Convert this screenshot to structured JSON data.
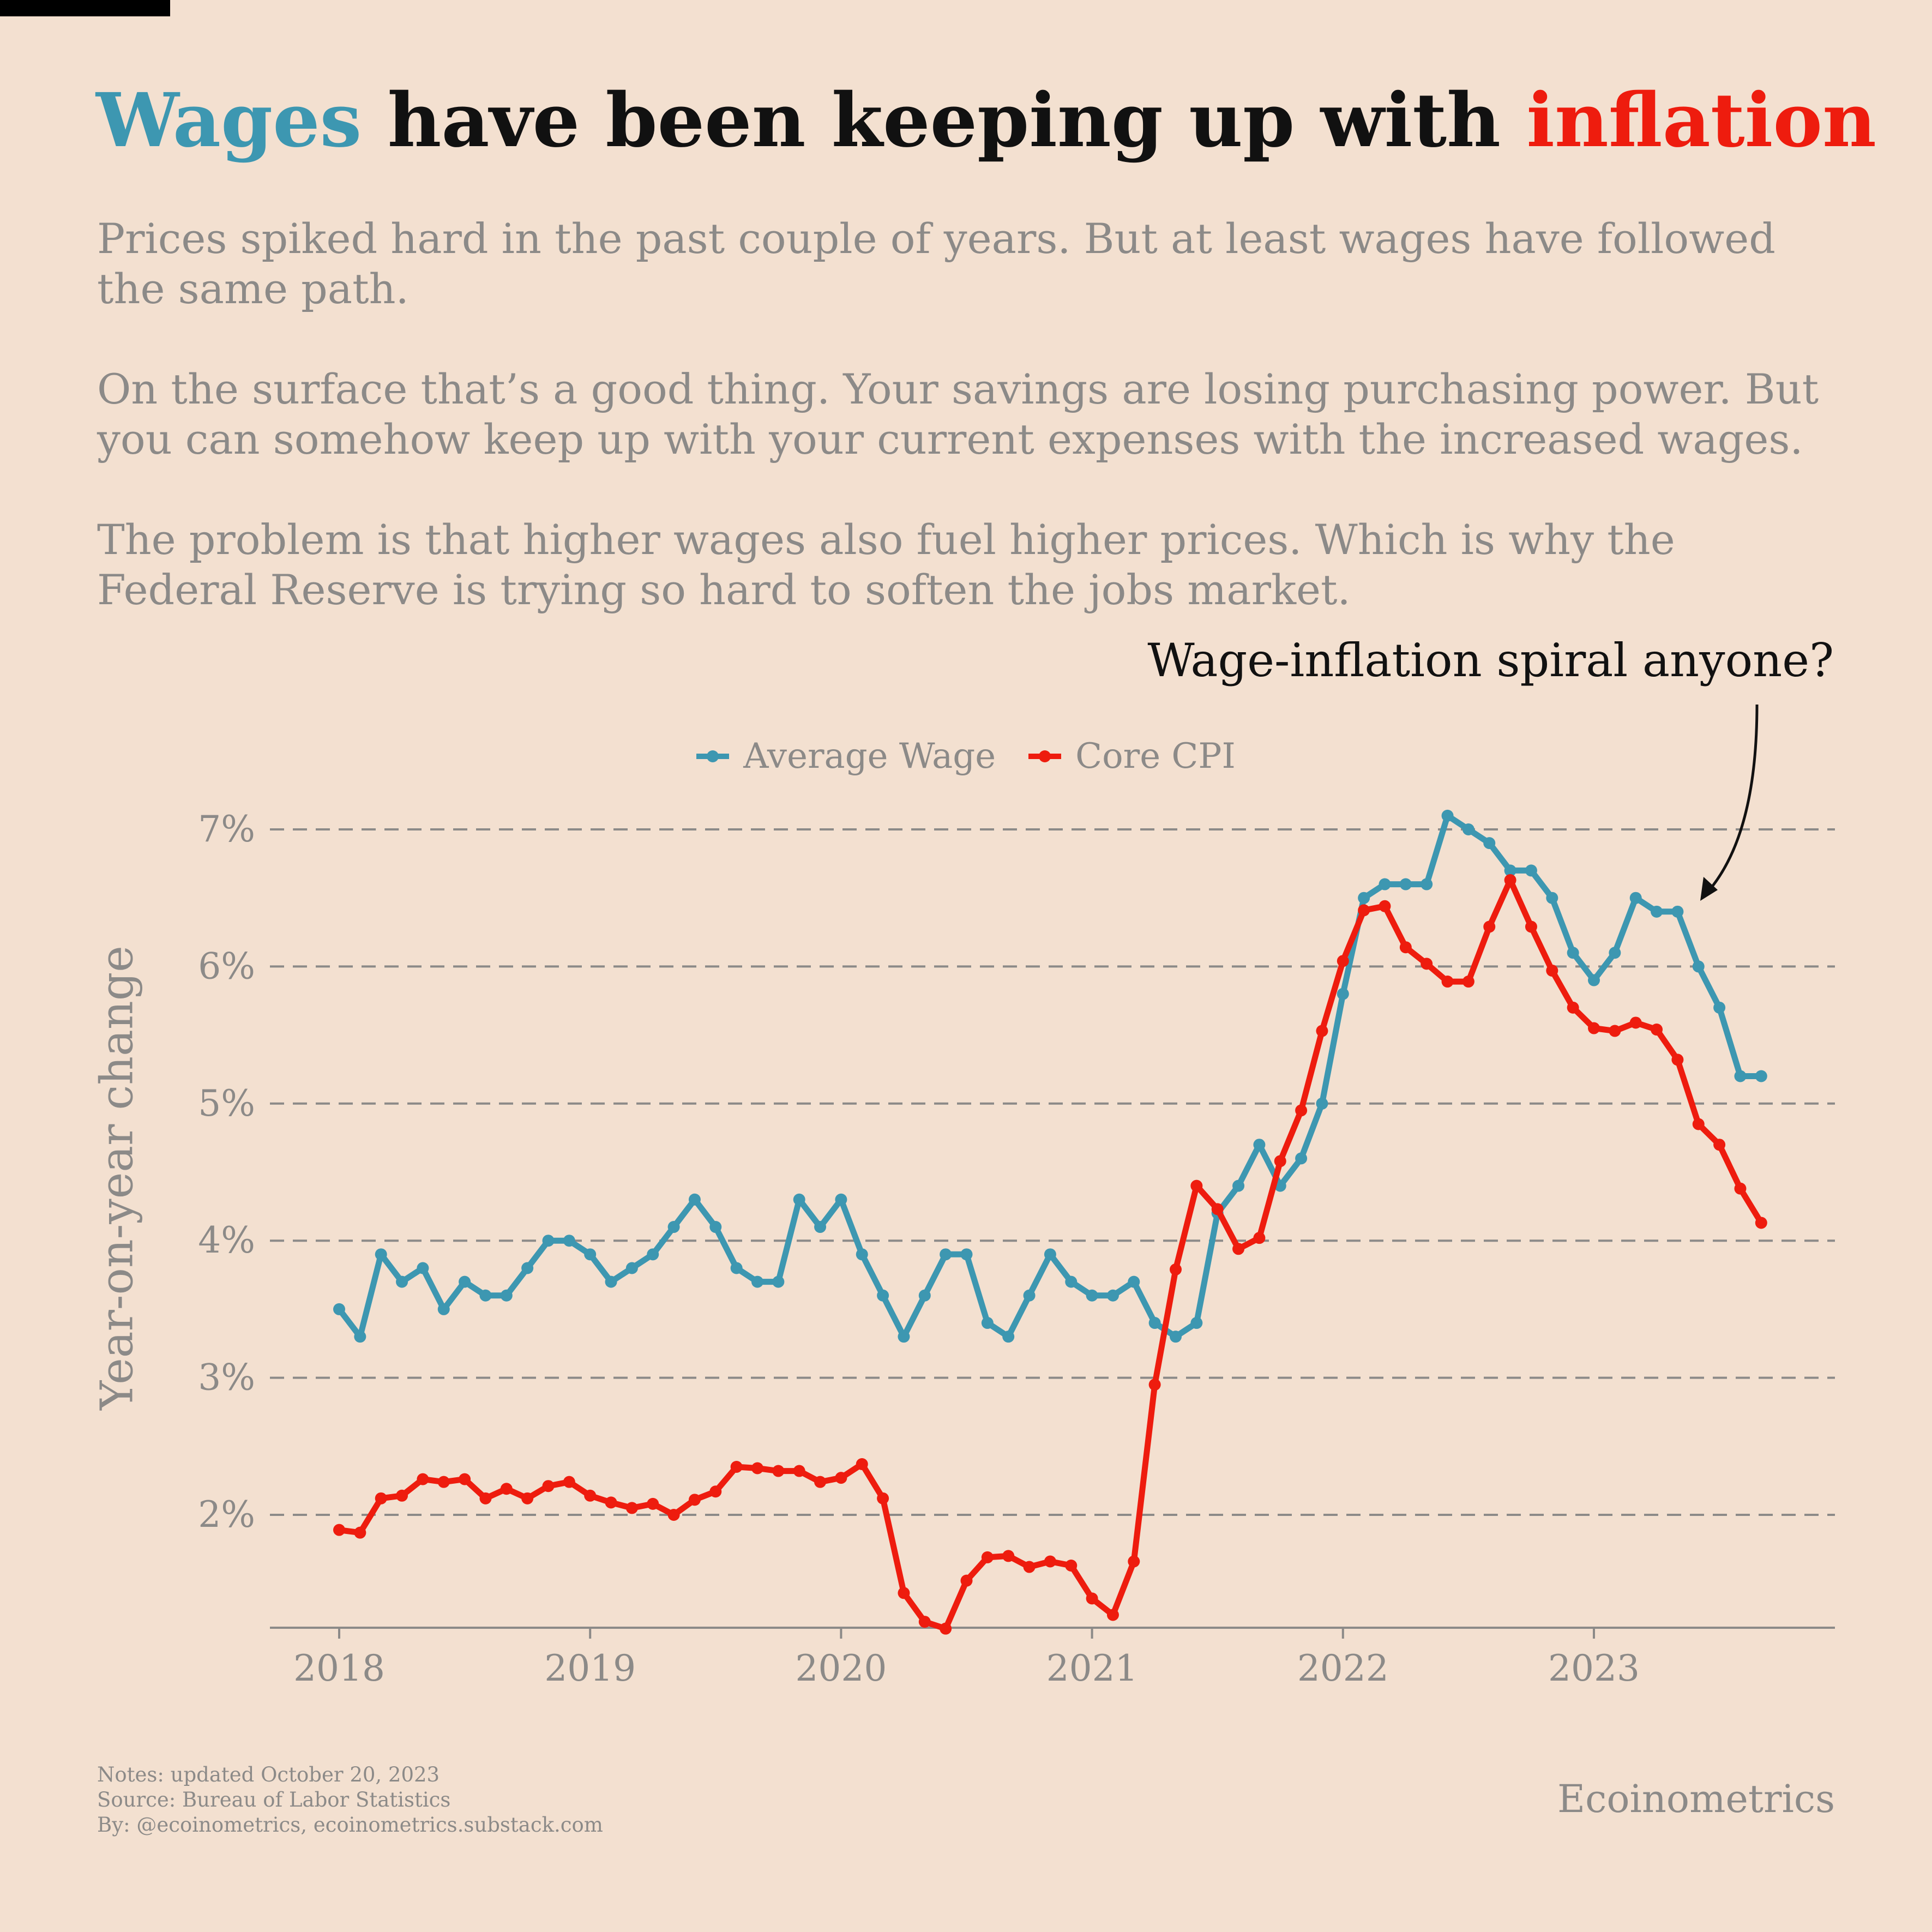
{
  "title": {
    "part1": "Wages",
    "part2": " have been keeping up with ",
    "part3": "inflation"
  },
  "subtitle": {
    "p1": "Prices spiked hard in the past couple of years. But at least wages have followed the same path.",
    "p2": "On the surface that’s a good thing. Your savings are losing purchasing power. But you can somehow keep up with your current expenses with the increased wages.",
    "p3": "The problem is that higher wages also fuel higher prices. Which is why the Federal Reserve is trying so hard to soften the jobs market."
  },
  "annotation": "Wage-inflation spiral anyone?",
  "footer": {
    "notes": "Notes: updated October 20, 2023",
    "source": "Source: Bureau of Labor Statistics",
    "by": "By: @ecoinometrics, ecoinometrics.substack.com",
    "brand": "Ecoinometrics"
  },
  "colors": {
    "wage": "#3d97b1",
    "cpi": "#ee1c0e",
    "grid": "#8c8a88",
    "background": "#f3e0d0"
  },
  "chart_data": {
    "type": "line",
    "ylabel": "Year-on-year change",
    "x_ticks": [
      "2018",
      "2019",
      "2020",
      "2021",
      "2022",
      "2023"
    ],
    "y_ticks": [
      "2%",
      "3%",
      "4%",
      "5%",
      "6%",
      "7%"
    ],
    "y_tick_values": [
      2,
      3,
      4,
      5,
      6,
      7
    ],
    "ylim": [
      1.18,
      7.2
    ],
    "xlim": [
      "2017-10",
      "2023-12"
    ],
    "x_start": "2018-01",
    "grid": "horizontal dashed",
    "legend": "top-center",
    "series": [
      {
        "name": "Average Wage",
        "color": "#3d97b1",
        "values": [
          3.5,
          3.3,
          3.9,
          3.7,
          3.8,
          3.5,
          3.7,
          3.6,
          3.6,
          3.8,
          4.0,
          4.0,
          3.9,
          3.7,
          3.8,
          3.9,
          4.1,
          4.3,
          4.1,
          3.8,
          3.7,
          3.7,
          4.3,
          4.1,
          4.3,
          3.9,
          3.6,
          3.3,
          3.6,
          3.9,
          3.9,
          3.4,
          3.3,
          3.6,
          3.9,
          3.7,
          3.6,
          3.6,
          3.7,
          3.4,
          3.3,
          3.4,
          4.2,
          4.4,
          4.7,
          4.4,
          4.6,
          5.0,
          5.8,
          6.5,
          6.6,
          6.6,
          6.6,
          7.1,
          7.0,
          6.9,
          6.7,
          6.7,
          6.5,
          6.1,
          5.9,
          6.1,
          6.5,
          6.4,
          6.4,
          6.0,
          5.7,
          5.2,
          5.2
        ]
      },
      {
        "name": "Core CPI",
        "color": "#ee1c0e",
        "values": [
          1.89,
          1.87,
          2.12,
          2.14,
          2.26,
          2.24,
          2.26,
          2.12,
          2.19,
          2.12,
          2.21,
          2.24,
          2.14,
          2.09,
          2.05,
          2.08,
          2.0,
          2.11,
          2.17,
          2.35,
          2.34,
          2.32,
          2.32,
          2.24,
          2.27,
          2.37,
          2.12,
          1.43,
          1.22,
          1.17,
          1.52,
          1.69,
          1.7,
          1.62,
          1.66,
          1.63,
          1.39,
          1.27,
          1.66,
          2.95,
          3.79,
          4.4,
          4.23,
          3.94,
          4.02,
          4.58,
          4.95,
          5.53,
          6.04,
          6.41,
          6.44,
          6.14,
          6.02,
          5.89,
          5.89,
          6.29,
          6.63,
          6.29,
          5.97,
          5.7,
          5.55,
          5.53,
          5.59,
          5.54,
          5.32,
          4.85,
          4.7,
          4.38,
          4.13
        ]
      }
    ]
  }
}
